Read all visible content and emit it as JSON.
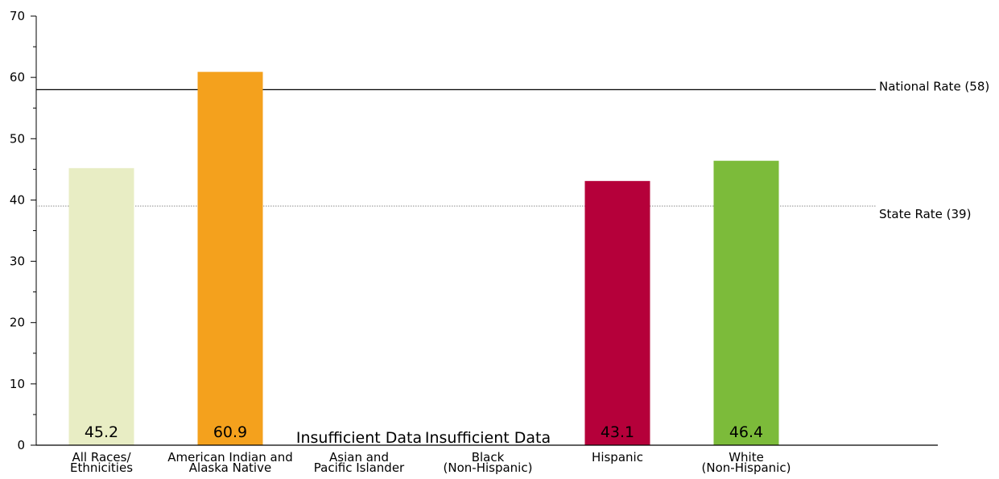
{
  "chart_data": {
    "type": "bar",
    "categories": [
      [
        "All Races/",
        "Ethnicities"
      ],
      [
        "American Indian and",
        "Alaska Native"
      ],
      [
        "Asian and",
        "Pacific Islander"
      ],
      [
        "Black",
        "(Non-Hispanic)"
      ],
      [
        "Hispanic"
      ],
      [
        "White",
        "(Non-Hispanic)"
      ]
    ],
    "values": [
      45.2,
      60.9,
      null,
      null,
      43.1,
      46.4
    ],
    "value_labels": [
      "45.2",
      "60.9",
      "Insufficient Data",
      "Insufficient Data",
      "43.1",
      "46.4"
    ],
    "bar_colors": [
      "#e8edc4",
      "#f4a11d",
      null,
      null,
      "#b5003a",
      "#7cbb3a"
    ],
    "ylim": [
      0,
      70
    ],
    "yticks": [
      0,
      10,
      20,
      30,
      40,
      50,
      60,
      70
    ],
    "reference_lines": [
      {
        "label": "National Rate (58)",
        "value": 58,
        "style": "solid",
        "color": "#000000"
      },
      {
        "label": "State Rate (39)",
        "value": 39,
        "style": "dotted",
        "color": "#888888"
      }
    ],
    "title": "",
    "xlabel": "",
    "ylabel": "",
    "grid": false
  }
}
